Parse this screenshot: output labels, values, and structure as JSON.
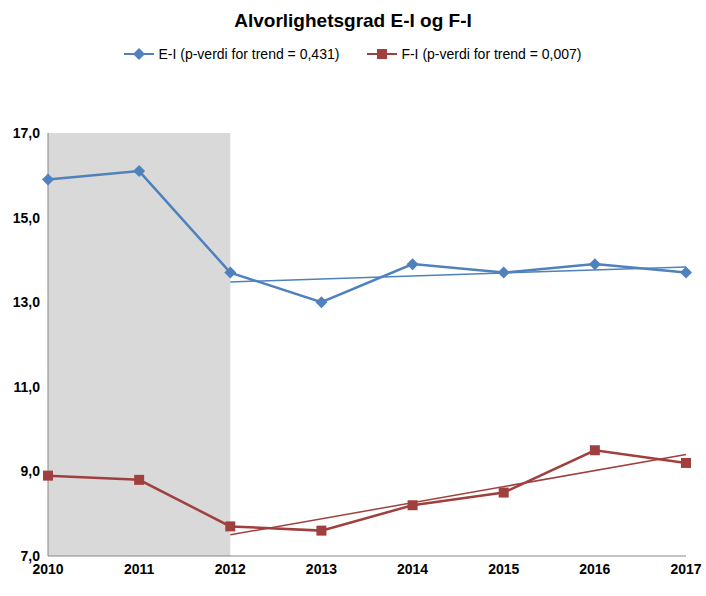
{
  "chart_data": {
    "type": "line",
    "title": "Alvorlighetsgrad E-I og F-I",
    "categories": [
      "2010",
      "2011",
      "2012",
      "2013",
      "2014",
      "2015",
      "2016",
      "2017"
    ],
    "series": [
      {
        "name": "E-I (p-verdi for trend = 0,431)",
        "color": "#4f81bd",
        "marker": "diamond",
        "values": [
          15.9,
          16.1,
          13.7,
          13.0,
          13.9,
          13.7,
          13.9,
          13.7
        ],
        "trend": [
          null,
          null,
          13.48,
          null,
          null,
          null,
          null,
          13.83
        ]
      },
      {
        "name": "F-I (p-verdi for trend = 0,007)",
        "color": "#a0403e",
        "marker": "square",
        "values": [
          8.9,
          8.8,
          7.7,
          7.6,
          8.2,
          8.5,
          9.5,
          9.2
        ],
        "trend": [
          null,
          null,
          7.5,
          null,
          null,
          null,
          null,
          9.4
        ]
      }
    ],
    "highlight": {
      "from": "2010",
      "to": "2012"
    },
    "ylim": [
      7,
      17
    ],
    "yticks": [
      {
        "value": 7,
        "label": "7,0"
      },
      {
        "value": 9,
        "label": "9,0"
      },
      {
        "value": 11,
        "label": "11,0"
      },
      {
        "value": 13,
        "label": "13,0"
      },
      {
        "value": 15,
        "label": "15,0"
      },
      {
        "value": 17,
        "label": "17,0"
      }
    ],
    "grid": false
  }
}
